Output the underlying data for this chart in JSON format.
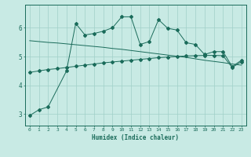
{
  "title": "",
  "xlabel": "Humidex (Indice chaleur)",
  "bg_color": "#c8eae4",
  "grid_color": "#a0d0c8",
  "line_color": "#1a6b5a",
  "xlim": [
    -0.5,
    23.5
  ],
  "ylim": [
    2.6,
    6.8
  ],
  "yticks": [
    3,
    4,
    5,
    6
  ],
  "xticks": [
    0,
    1,
    2,
    3,
    4,
    5,
    6,
    7,
    8,
    9,
    10,
    11,
    12,
    13,
    14,
    15,
    16,
    17,
    18,
    19,
    20,
    21,
    22,
    23
  ],
  "line1_x": [
    0,
    1,
    2,
    4,
    5,
    6,
    7,
    8,
    9,
    10,
    11,
    12,
    13,
    14,
    15,
    16,
    17,
    18,
    19,
    20,
    21,
    22,
    23
  ],
  "line1_y": [
    2.95,
    3.15,
    3.25,
    4.5,
    6.15,
    5.75,
    5.8,
    5.88,
    6.0,
    6.38,
    6.38,
    5.42,
    5.52,
    6.28,
    5.98,
    5.92,
    5.48,
    5.42,
    5.07,
    5.17,
    5.17,
    4.65,
    4.87
  ],
  "line2_x": [
    0,
    1,
    2,
    3,
    4,
    5,
    6,
    7,
    8,
    9,
    10,
    11,
    12,
    13,
    14,
    15,
    16,
    17,
    18,
    19,
    20,
    21,
    22,
    23
  ],
  "line2_y": [
    5.55,
    5.52,
    5.49,
    5.47,
    5.44,
    5.41,
    5.38,
    5.35,
    5.32,
    5.28,
    5.25,
    5.21,
    5.17,
    5.13,
    5.09,
    5.05,
    5.01,
    4.97,
    4.92,
    4.87,
    4.83,
    4.79,
    4.74,
    4.7
  ],
  "line3_x": [
    0,
    1,
    2,
    3,
    4,
    5,
    6,
    7,
    8,
    9,
    10,
    11,
    12,
    13,
    14,
    15,
    16,
    17,
    18,
    19,
    20,
    21,
    22,
    23
  ],
  "line3_y": [
    4.45,
    4.5,
    4.55,
    4.58,
    4.62,
    4.66,
    4.7,
    4.74,
    4.78,
    4.81,
    4.84,
    4.87,
    4.9,
    4.93,
    4.96,
    4.98,
    5.0,
    5.02,
    5.03,
    5.04,
    5.04,
    5.03,
    4.62,
    4.82
  ]
}
